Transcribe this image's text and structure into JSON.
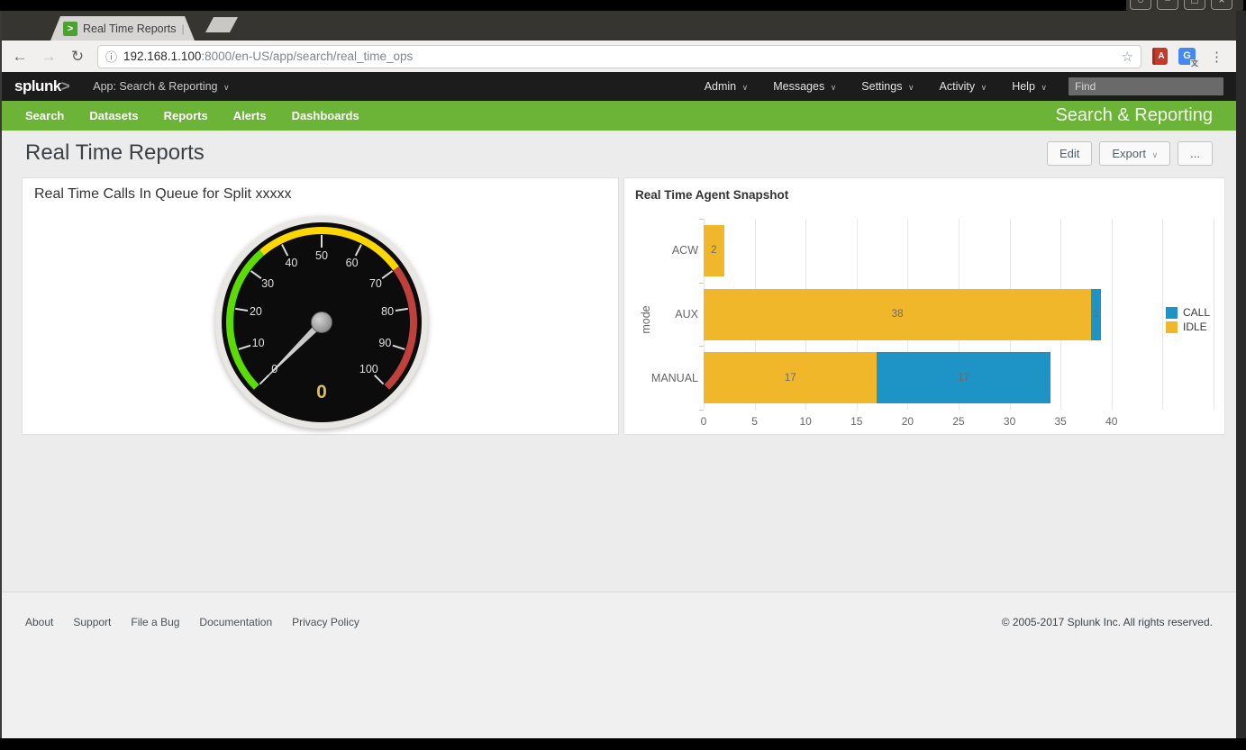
{
  "window": {
    "controls": [
      "○",
      "−",
      "□",
      "×"
    ]
  },
  "browser": {
    "tab": {
      "favicon_glyph": ">",
      "title": "Real Time Reports",
      "separator": "|",
      "close_glyph": "×"
    },
    "toolbar": {
      "back_glyph": "←",
      "forward_glyph": "→",
      "reload_glyph": "↻",
      "info_glyph": "ⓘ",
      "url_host": "192.168.1.100",
      "url_path": ":8000/en-US/app/search/real_time_ops",
      "star_glyph": "☆",
      "book_glyph": "A",
      "translate_glyph": "G",
      "menu_glyph": "⋮"
    }
  },
  "splunk_bar": {
    "logo_text": "splunk",
    "logo_caret": ">",
    "app_menu": "App: Search & Reporting",
    "menus": [
      "Admin",
      "Messages",
      "Settings",
      "Activity",
      "Help"
    ],
    "caret_glyph": "∨",
    "find_placeholder": "Find"
  },
  "app_bar": {
    "tabs": [
      "Search",
      "Datasets",
      "Reports",
      "Alerts",
      "Dashboards"
    ],
    "app_title": "Search & Reporting",
    "color": "#6cb438"
  },
  "page": {
    "title": "Real Time Reports",
    "edit_button": "Edit",
    "export_button": "Export",
    "more_button": "..."
  },
  "chart_data": [
    {
      "type": "gauge",
      "title": "Real Time Calls In Queue for Split xxxxx",
      "value": 0,
      "min": 0,
      "max": 100,
      "tick_interval": 10,
      "ranges": [
        {
          "from": 0,
          "to": 35,
          "color": "#5bdc05"
        },
        {
          "from": 35,
          "to": 70,
          "color": "#ffd700"
        },
        {
          "from": 70,
          "to": 100,
          "color": "#c0403c"
        }
      ],
      "needle_color": "#bdbdbd",
      "value_color": "#dcbd5e"
    },
    {
      "type": "bar",
      "orientation": "horizontal",
      "stacked": true,
      "title": "Real Time Agent Snapshot",
      "ylabel": "mode",
      "categories": [
        "ACW",
        "AUX",
        "MANUAL"
      ],
      "series": [
        {
          "name": "IDLE",
          "color": "#f0b72a",
          "values": [
            2,
            38,
            17
          ]
        },
        {
          "name": "CALL",
          "color": "#1e93c6",
          "values": [
            0,
            1,
            17
          ]
        }
      ],
      "xlim": [
        0,
        50
      ],
      "xticks": [
        0,
        5,
        10,
        15,
        20,
        25,
        30,
        35,
        40
      ],
      "legend": [
        "CALL",
        "IDLE"
      ],
      "legend_position": "right",
      "grid": true
    }
  ],
  "footer": {
    "links": [
      "About",
      "Support",
      "File a Bug",
      "Documentation",
      "Privacy Policy"
    ],
    "copyright": "© 2005-2017 Splunk Inc. All rights reserved."
  }
}
